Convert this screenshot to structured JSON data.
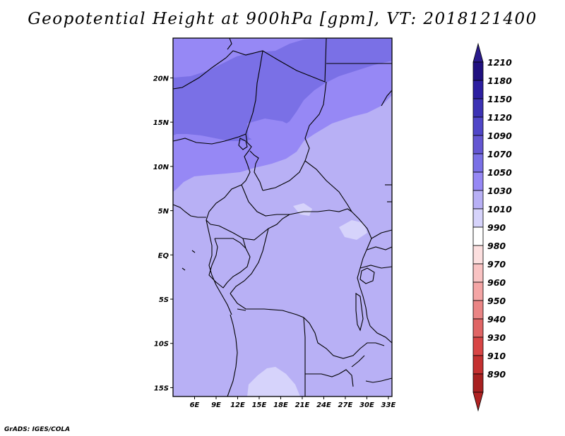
{
  "title": "Geopotential Height at 900hPa [gpm], VT: 2018121400",
  "credit": "GrADS: IGES/COLA",
  "map": {
    "lon_range": [
      3,
      33.5
    ],
    "lat_range": [
      -16,
      24.5
    ],
    "lon_ticks": [
      "6E",
      "9E",
      "12E",
      "15E",
      "18E",
      "21E",
      "24E",
      "27E",
      "30E",
      "33E"
    ],
    "lon_tick_values": [
      6,
      9,
      12,
      15,
      18,
      21,
      24,
      27,
      30,
      33
    ],
    "lat_ticks": [
      "20N",
      "15N",
      "10N",
      "5N",
      "EQ",
      "5S",
      "10S",
      "15S"
    ],
    "lat_tick_values": [
      20,
      15,
      10,
      5,
      0,
      -5,
      -10,
      -15
    ],
    "field": "Geopotential Height",
    "level": "900hPa",
    "units": "gpm",
    "valid_time": "2018121400"
  },
  "colorbar": {
    "levels": [
      "1210",
      "1180",
      "1150",
      "1120",
      "1090",
      "1070",
      "1050",
      "1030",
      "1010",
      "990",
      "980",
      "970",
      "960",
      "950",
      "940",
      "930",
      "910",
      "890"
    ],
    "colors": [
      "#201080",
      "#2c1ea0",
      "#3c32b4",
      "#5046c8",
      "#6456d2",
      "#7a70e6",
      "#9688f5",
      "#b8b0f5",
      "#d6d3fb",
      "#ffffff",
      "#fcdfdf",
      "#f9c3c3",
      "#f4a5a5",
      "#ea8585",
      "#e06565",
      "#d84545",
      "#c43030",
      "#a82020"
    ],
    "top_arrow_color": "#2a1a8c",
    "bottom_arrow_color": "#b02222"
  },
  "contour_colors": {
    "c1010_1030": "#d6d3fb",
    "c1030_1050": "#b8b0f5",
    "c1050_1070": "#9688f5",
    "c1070_1090": "#7a70e6"
  }
}
